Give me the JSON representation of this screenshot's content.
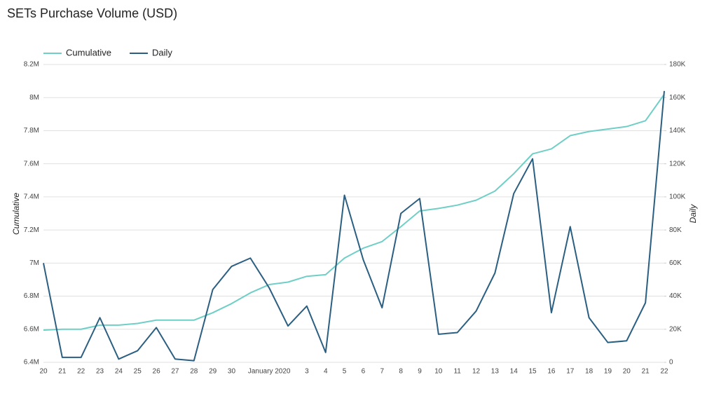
{
  "chart_data": {
    "type": "line",
    "title": "SETs Purchase Volume (USD)",
    "ylabel": "Cumulative",
    "y2label": "Daily",
    "legend": "top-left",
    "grid": true,
    "categories": [
      "20",
      "21",
      "22",
      "23",
      "24",
      "25",
      "26",
      "27",
      "28",
      "29",
      "30",
      null,
      "January 2020",
      null,
      "3",
      "4",
      "5",
      "6",
      "7",
      "8",
      "9",
      "10",
      "11",
      "12",
      "13",
      "14",
      "15",
      "16",
      "17",
      "18",
      "19",
      "20",
      "21",
      "22"
    ],
    "series": [
      {
        "name": "Cumulative",
        "color": "#6fcfc6",
        "axis": "y",
        "values": [
          6595000,
          6600000,
          6600000,
          6625000,
          6625000,
          6635000,
          6655000,
          6655000,
          6655000,
          6700000,
          6755000,
          6820000,
          6870000,
          6885000,
          6920000,
          6930000,
          7030000,
          7090000,
          7130000,
          7220000,
          7315000,
          7330000,
          7350000,
          7380000,
          7435000,
          7540000,
          7660000,
          7690000,
          7770000,
          7795000,
          7810000,
          7825000,
          7860000,
          8020000
        ]
      },
      {
        "name": "Daily",
        "color": "#2b5f82",
        "axis": "y2",
        "values": [
          60000,
          3000,
          3000,
          27000,
          2000,
          7000,
          21000,
          2000,
          1000,
          44000,
          58000,
          63000,
          45000,
          22000,
          34000,
          6000,
          101000,
          62000,
          33000,
          90000,
          99000,
          17000,
          18000,
          31000,
          54000,
          102000,
          123000,
          30000,
          82000,
          27000,
          12000,
          13000,
          36000,
          164000
        ]
      }
    ],
    "ylim": [
      6400000,
      8200000
    ],
    "yticks": [
      {
        "value": 6400000,
        "label": "6.4M"
      },
      {
        "value": 6600000,
        "label": "6.6M"
      },
      {
        "value": 6800000,
        "label": "6.8M"
      },
      {
        "value": 7000000,
        "label": "7M"
      },
      {
        "value": 7200000,
        "label": "7.2M"
      },
      {
        "value": 7400000,
        "label": "7.4M"
      },
      {
        "value": 7600000,
        "label": "7.6M"
      },
      {
        "value": 7800000,
        "label": "7.8M"
      },
      {
        "value": 8000000,
        "label": "8M"
      },
      {
        "value": 8200000,
        "label": "8.2M"
      }
    ],
    "y2lim": [
      0,
      180000
    ],
    "y2ticks": [
      0,
      {
        "value": 20000,
        "label": "20K"
      },
      {
        "value": 40000,
        "label": "40K"
      },
      {
        "value": 60000,
        "label": "60K"
      },
      {
        "value": 80000,
        "label": "80K"
      },
      {
        "value": 100000,
        "label": "100K"
      },
      {
        "value": 120000,
        "label": "120K"
      },
      {
        "value": 140000,
        "label": "140K"
      },
      {
        "value": 160000,
        "label": "160K"
      },
      {
        "value": 180000,
        "label": "180K"
      }
    ]
  }
}
